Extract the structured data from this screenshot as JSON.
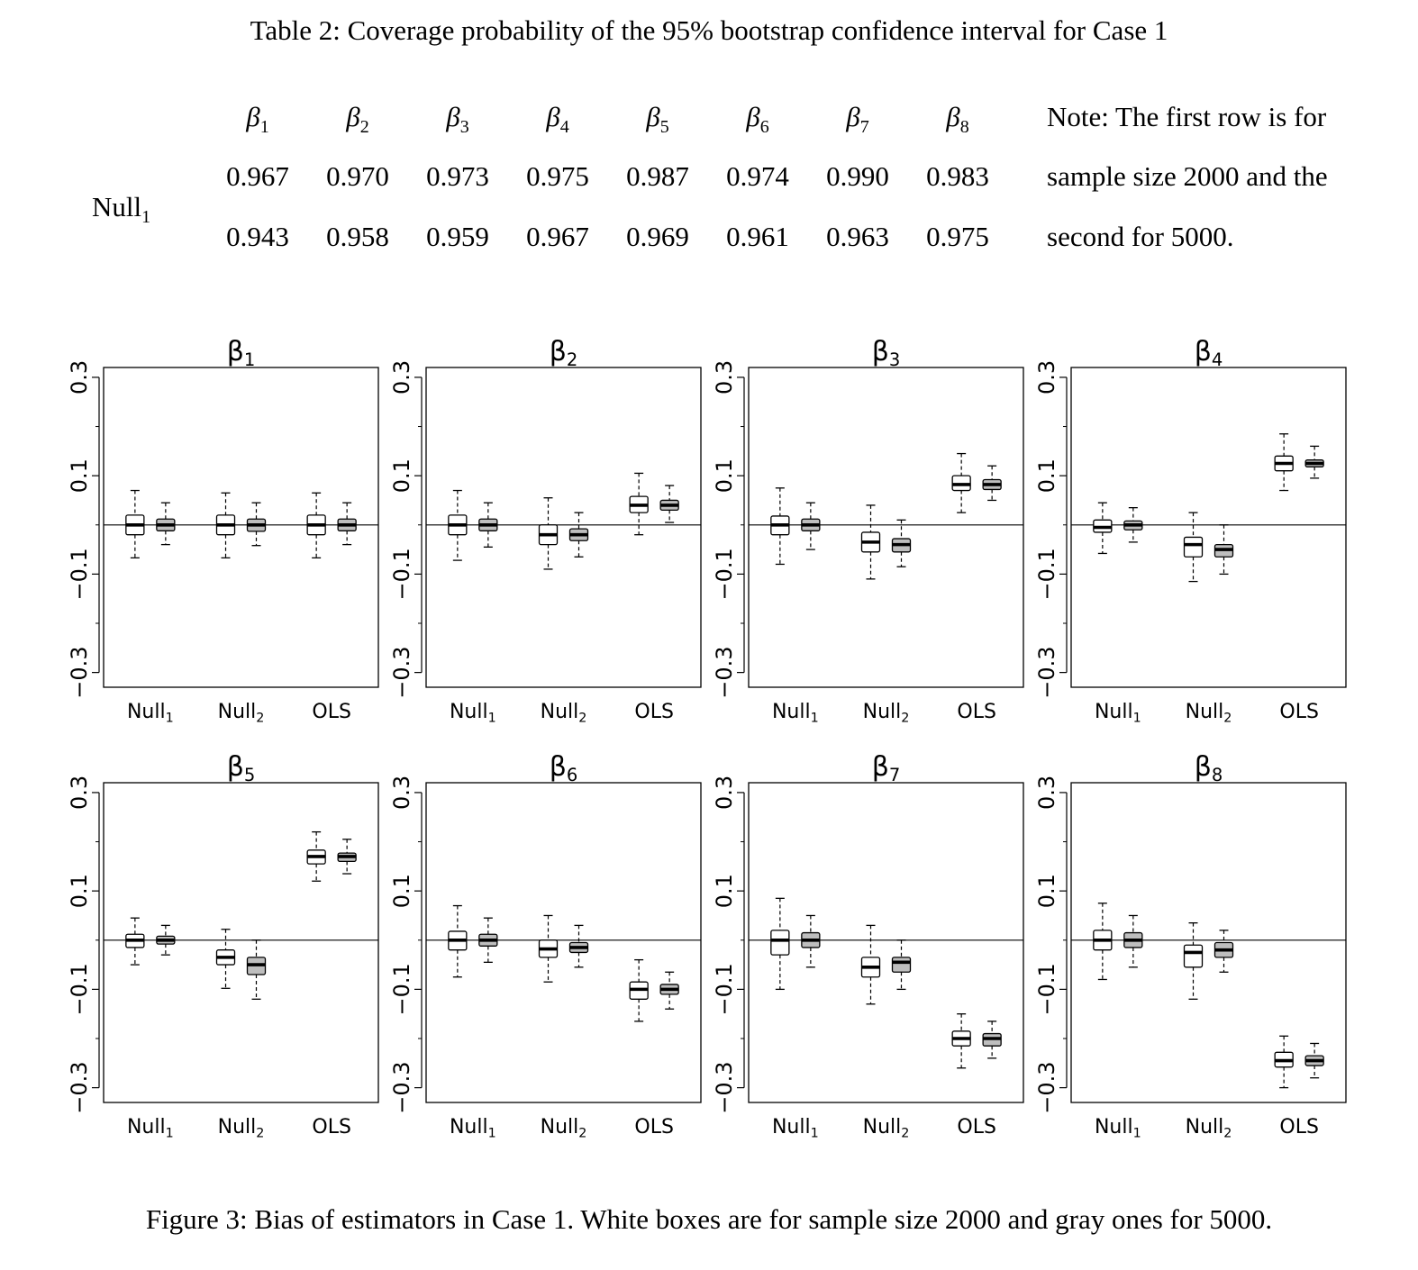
{
  "table": {
    "caption": "Table 2: Coverage probability of the 95% bootstrap confidence interval for Case 1",
    "columns": [
      "β1",
      "β2",
      "β3",
      "β4",
      "β5",
      "β6",
      "β7",
      "β8"
    ],
    "row_label": "Null1",
    "rows": [
      [
        "0.967",
        "0.970",
        "0.973",
        "0.975",
        "0.987",
        "0.974",
        "0.990",
        "0.983"
      ],
      [
        "0.943",
        "0.958",
        "0.959",
        "0.967",
        "0.969",
        "0.961",
        "0.963",
        "0.975"
      ]
    ],
    "note_lines": [
      "Note: The first row is for",
      "sample size 2000 and the",
      "second for 5000."
    ]
  },
  "figure": {
    "caption": "Figure 3: Bias of estimators in Case 1. White boxes are for sample size 2000 and gray ones for 5000."
  },
  "chart_data": {
    "type": "box",
    "panels_titles": [
      "β1",
      "β2",
      "β3",
      "β4",
      "β5",
      "β6",
      "β7",
      "β8"
    ],
    "categories": [
      "Null1",
      "Null2",
      "OLS"
    ],
    "y_ticks": [
      "0.3",
      "0.1",
      "−0.1",
      "−0.3"
    ],
    "ylim": [
      -0.33,
      0.32
    ],
    "reference_line": 0,
    "series_names": [
      "2000",
      "5000"
    ],
    "box_colors": {
      "2000": "#ffffff",
      "5000": "#bebebe"
    },
    "panels": [
      {
        "title": "β1",
        "boxes": [
          [
            [
              -0.067,
              -0.02,
              0,
              0.02,
              0.07
            ],
            [
              -0.04,
              -0.012,
              0,
              0.012,
              0.045
            ]
          ],
          [
            [
              -0.067,
              -0.02,
              0,
              0.02,
              0.065
            ],
            [
              -0.042,
              -0.013,
              0,
              0.012,
              0.045
            ]
          ],
          [
            [
              -0.067,
              -0.02,
              0,
              0.02,
              0.065
            ],
            [
              -0.04,
              -0.012,
              0,
              0.012,
              0.045
            ]
          ]
        ]
      },
      {
        "title": "β2",
        "boxes": [
          [
            [
              -0.072,
              -0.02,
              0,
              0.02,
              0.07
            ],
            [
              -0.045,
              -0.012,
              0,
              0.012,
              0.045
            ]
          ],
          [
            [
              -0.09,
              -0.04,
              -0.02,
              0,
              0.055
            ],
            [
              -0.065,
              -0.032,
              -0.02,
              -0.008,
              0.025
            ]
          ],
          [
            [
              -0.02,
              0.025,
              0.04,
              0.058,
              0.105
            ],
            [
              0.005,
              0.03,
              0.04,
              0.05,
              0.08
            ]
          ]
        ]
      },
      {
        "title": "β3",
        "boxes": [
          [
            [
              -0.08,
              -0.02,
              0,
              0.018,
              0.075
            ],
            [
              -0.05,
              -0.012,
              0,
              0.012,
              0.045
            ]
          ],
          [
            [
              -0.11,
              -0.055,
              -0.035,
              -0.015,
              0.04
            ],
            [
              -0.085,
              -0.055,
              -0.04,
              -0.028,
              0.01
            ]
          ],
          [
            [
              0.025,
              0.07,
              0.082,
              0.1,
              0.145
            ],
            [
              0.05,
              0.072,
              0.082,
              0.092,
              0.12
            ]
          ]
        ]
      },
      {
        "title": "β4",
        "boxes": [
          [
            [
              -0.058,
              -0.015,
              -0.005,
              0.01,
              0.045
            ],
            [
              -0.035,
              -0.01,
              0,
              0.008,
              0.035
            ]
          ],
          [
            [
              -0.115,
              -0.065,
              -0.04,
              -0.025,
              0.025
            ],
            [
              -0.1,
              -0.065,
              -0.05,
              -0.04,
              0
            ]
          ],
          [
            [
              0.07,
              0.11,
              0.125,
              0.14,
              0.185
            ],
            [
              0.095,
              0.118,
              0.125,
              0.132,
              0.16
            ]
          ]
        ]
      },
      {
        "title": "β5",
        "boxes": [
          [
            [
              -0.05,
              -0.015,
              0,
              0.012,
              0.045
            ],
            [
              -0.03,
              -0.008,
              0,
              0.008,
              0.03
            ]
          ],
          [
            [
              -0.098,
              -0.05,
              -0.035,
              -0.02,
              0.022
            ],
            [
              -0.12,
              -0.07,
              -0.05,
              -0.035,
              0
            ]
          ],
          [
            [
              0.12,
              0.155,
              0.17,
              0.183,
              0.22
            ],
            [
              0.135,
              0.16,
              0.17,
              0.177,
              0.205
            ]
          ]
        ]
      },
      {
        "title": "β6",
        "boxes": [
          [
            [
              -0.075,
              -0.02,
              0,
              0.018,
              0.07
            ],
            [
              -0.045,
              -0.012,
              0,
              0.012,
              0.045
            ]
          ],
          [
            [
              -0.085,
              -0.035,
              -0.018,
              0,
              0.05
            ],
            [
              -0.055,
              -0.025,
              -0.015,
              -0.005,
              0.03
            ]
          ],
          [
            [
              -0.165,
              -0.12,
              -0.1,
              -0.085,
              -0.04
            ],
            [
              -0.14,
              -0.11,
              -0.1,
              -0.09,
              -0.065
            ]
          ]
        ]
      },
      {
        "title": "β7",
        "boxes": [
          [
            [
              -0.1,
              -0.03,
              0,
              0.02,
              0.085
            ],
            [
              -0.055,
              -0.015,
              0,
              0.015,
              0.05
            ]
          ],
          [
            [
              -0.13,
              -0.075,
              -0.055,
              -0.035,
              0.03
            ],
            [
              -0.1,
              -0.065,
              -0.045,
              -0.035,
              0
            ]
          ],
          [
            [
              -0.26,
              -0.215,
              -0.2,
              -0.185,
              -0.15
            ],
            [
              -0.24,
              -0.215,
              -0.2,
              -0.19,
              -0.165
            ]
          ]
        ]
      },
      {
        "title": "β8",
        "boxes": [
          [
            [
              -0.08,
              -0.02,
              0,
              0.02,
              0.075
            ],
            [
              -0.055,
              -0.015,
              0,
              0.015,
              0.05
            ]
          ],
          [
            [
              -0.12,
              -0.055,
              -0.025,
              -0.01,
              0.035
            ],
            [
              -0.065,
              -0.035,
              -0.02,
              -0.005,
              0.02
            ]
          ],
          [
            [
              -0.3,
              -0.258,
              -0.245,
              -0.228,
              -0.195
            ],
            [
              -0.28,
              -0.255,
              -0.245,
              -0.235,
              -0.21
            ]
          ]
        ]
      }
    ]
  }
}
